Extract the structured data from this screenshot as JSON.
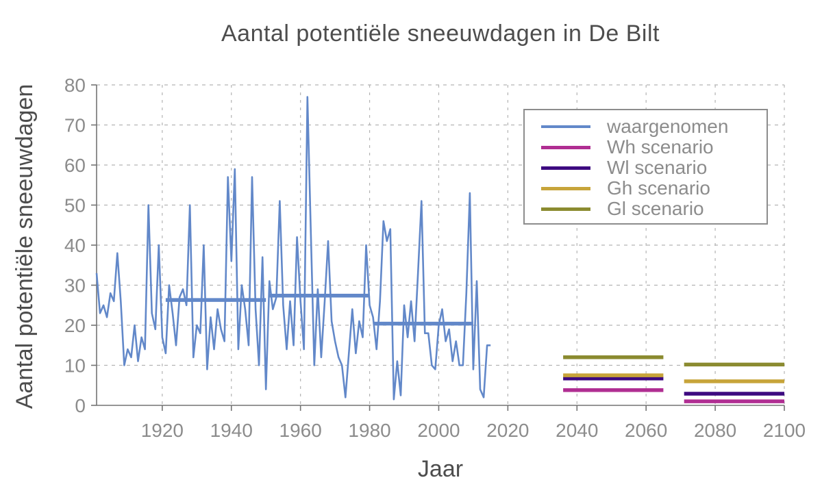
{
  "title": "Aantal potentiële sneeuwdagen in De Bilt",
  "chart_data": {
    "type": "line",
    "title": "Aantal potentiële sneeuwdagen in De Bilt",
    "xlabel": "Jaar",
    "ylabel": "Aantal potentiële sneeuwdagen",
    "xlim": [
      1901,
      2100
    ],
    "ylim": [
      0,
      80
    ],
    "x_ticks": [
      1920,
      1940,
      1960,
      1980,
      2000,
      2020,
      2040,
      2060,
      2080,
      2100
    ],
    "y_ticks": [
      0,
      10,
      20,
      30,
      40,
      50,
      60,
      70,
      80
    ],
    "grid": true,
    "legend_position": "upper right",
    "colors": {
      "observed": "#6288c9",
      "wh": "#b02e92",
      "wl": "#3d0a80",
      "gh": "#c7a43a",
      "gl": "#8b8b30",
      "axis": "#737373",
      "gridline": "#b3b3b3",
      "text_dark": "#4d4d4d",
      "text_gray": "#8c8c8c"
    },
    "series": [
      {
        "name": "waargenomen",
        "color": "#6288c9",
        "x_start": 1901,
        "x_step": 1,
        "values": [
          33,
          23,
          25,
          22,
          28,
          26,
          38,
          26,
          10,
          14,
          12,
          20,
          11,
          17,
          14,
          50,
          23,
          19,
          40,
          17,
          13,
          30,
          23,
          15,
          27,
          29,
          25,
          50,
          12,
          20,
          18,
          40,
          9,
          22,
          14,
          24,
          19,
          16,
          57,
          36,
          59,
          14,
          30,
          24,
          15,
          57,
          24,
          10,
          37,
          4,
          31,
          24,
          27,
          51,
          25,
          14,
          26,
          15,
          42,
          26,
          14,
          77,
          43,
          10,
          29,
          12,
          26,
          41,
          21,
          16,
          12,
          10,
          2,
          13,
          24,
          13,
          21,
          17,
          40,
          25,
          22,
          14,
          26,
          46,
          41,
          44,
          1.5,
          11,
          2.5,
          25,
          17,
          26,
          16,
          33,
          51,
          18,
          18,
          10,
          9,
          20,
          24,
          16,
          19,
          11,
          16,
          10,
          10,
          28,
          53,
          9,
          31,
          4,
          2,
          15,
          15
        ]
      }
    ],
    "reference_means": [
      {
        "name": "gemiddelde 1921-1950",
        "from": 1921,
        "to": 1950,
        "value": 26.3,
        "color": "#6288c9"
      },
      {
        "name": "gemiddelde 1951-1980",
        "from": 1951,
        "to": 1980,
        "value": 27.4,
        "color": "#6288c9"
      },
      {
        "name": "gemiddelde 1981-2010",
        "from": 1981,
        "to": 2010,
        "value": 20.4,
        "color": "#6288c9"
      }
    ],
    "scenarios": [
      {
        "name": "Wh scenario",
        "color": "#b02e92",
        "segments": [
          {
            "from": 2036,
            "to": 2065,
            "value": 3.8
          },
          {
            "from": 2071,
            "to": 2100,
            "value": 1.0
          }
        ]
      },
      {
        "name": "Wl scenario",
        "color": "#3d0a80",
        "segments": [
          {
            "from": 2036,
            "to": 2065,
            "value": 6.7
          },
          {
            "from": 2071,
            "to": 2100,
            "value": 2.9
          }
        ]
      },
      {
        "name": "Gh scenario",
        "color": "#c7a43a",
        "segments": [
          {
            "from": 2036,
            "to": 2065,
            "value": 7.5
          },
          {
            "from": 2071,
            "to": 2100,
            "value": 6.0
          }
        ]
      },
      {
        "name": "Gl scenario",
        "color": "#8b8b30",
        "segments": [
          {
            "from": 2036,
            "to": 2065,
            "value": 12.0
          },
          {
            "from": 2071,
            "to": 2100,
            "value": 10.2
          }
        ]
      }
    ]
  },
  "legend": {
    "entries": [
      {
        "label": "waargenomen",
        "color": "#6288c9"
      },
      {
        "label": "Wh scenario",
        "color": "#b02e92"
      },
      {
        "label": "Wl scenario",
        "color": "#3d0a80"
      },
      {
        "label": "Gh scenario",
        "color": "#c7a43a"
      },
      {
        "label": "Gl scenario",
        "color": "#8b8b30"
      }
    ]
  }
}
